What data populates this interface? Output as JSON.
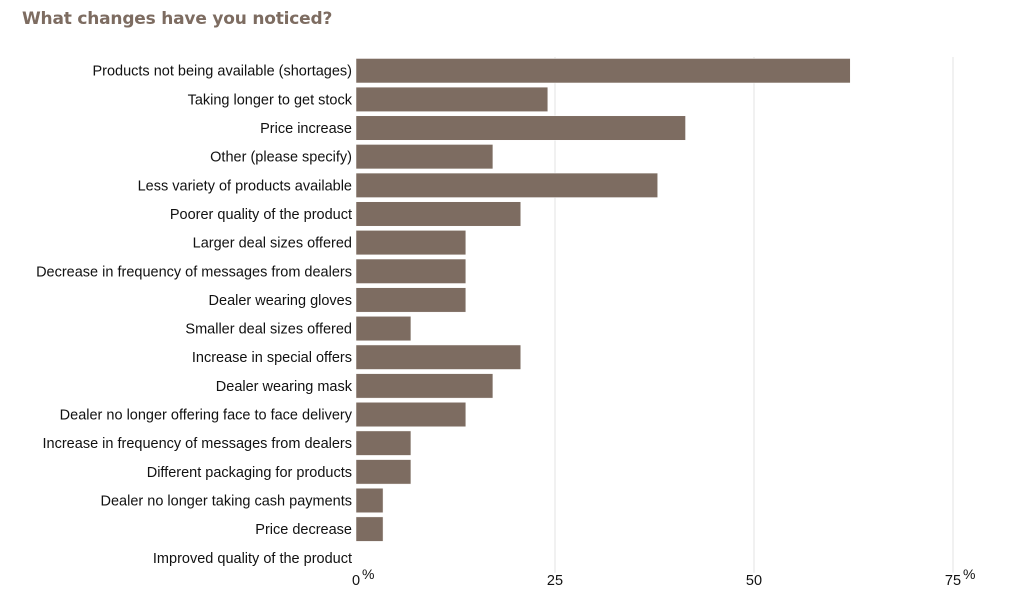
{
  "chart_data": {
    "type": "bar",
    "orientation": "horizontal",
    "title": "What changes have you noticed?",
    "categories": [
      "Products not being available (shortages)",
      "Taking longer to get stock",
      "Price increase",
      "Other (please specify)",
      "Less variety of products available",
      "Poorer quality of the product",
      "Larger deal sizes offered",
      "Decrease in frequency of messages from dealers",
      "Dealer wearing gloves",
      "Smaller deal sizes offered",
      "Increase in special offers",
      "Dealer wearing mask",
      "Dealer no longer offering face to face delivery",
      "Increase in frequency of messages from dealers",
      "Different packaging for products",
      "Dealer no longer taking cash payments",
      "Price decrease",
      "Improved quality of the product"
    ],
    "values": [
      62.1,
      24.1,
      41.4,
      17.2,
      37.9,
      20.7,
      13.8,
      13.8,
      13.8,
      6.9,
      20.7,
      17.2,
      13.8,
      6.9,
      6.9,
      3.4,
      3.4,
      0
    ],
    "xlim": [
      0,
      75
    ],
    "xticks": [
      0,
      25,
      50,
      75
    ],
    "xtick_labels": [
      "0",
      "25",
      "50",
      "75"
    ],
    "unit_label": "%",
    "grid": "vertical",
    "bar_color": "#7d6c61"
  }
}
